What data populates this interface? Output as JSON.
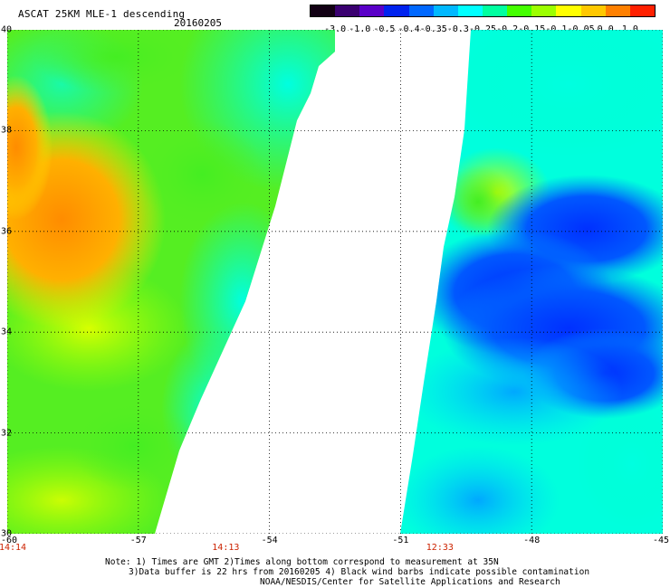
{
  "header": {
    "title": "ASCAT 25KM MLE-1 descending",
    "date": "20160205"
  },
  "colorbar": {
    "labels": [
      "-3.0",
      "-1.0",
      "-0.5",
      "-0.4",
      "-0.35",
      "-0.3",
      "-0.25",
      "-0.2",
      "-0.15",
      "-0.1",
      "-0.05",
      "0.0",
      "1.0"
    ],
    "colors": [
      "#120014",
      "#3a0070",
      "#5a00c8",
      "#0022ee",
      "#0068ff",
      "#00b8ff",
      "#00ffff",
      "#00ffa0",
      "#44ff00",
      "#9cff00",
      "#ffff00",
      "#ffc800",
      "#ff8000",
      "#ff2000"
    ]
  },
  "map": {
    "lon_range": [
      -60,
      -45
    ],
    "lat_range": [
      30,
      40
    ],
    "lat_ticks": [
      "40",
      "38",
      "36",
      "34",
      "32",
      "30"
    ],
    "lon_ticks": [
      "-60",
      "-57",
      "-54",
      "-51",
      "-48",
      "-45"
    ],
    "grid_lines": "dotted",
    "swath_times": [
      "14:14",
      "14:13",
      "12:33"
    ],
    "colors": {
      "background": "#ffffff",
      "field_green": "#55ee22",
      "field_yellow": "#c8ff00",
      "field_orange": "#ff9a00",
      "field_cyan": "#00ffdd",
      "field_lightblue": "#00c8ff",
      "field_blue": "#0050ff",
      "time_label": "#cc2200"
    }
  },
  "notes": [
    "Note: 1) Times are GMT 2)Times along bottom correspond to measurement at 35N",
    "3)Data buffer is 22 hrs from 20160205 4) Black wind barbs indicate possible contamination",
    "NOAA/NESDIS/Center for Satellite Applications and Research"
  ]
}
